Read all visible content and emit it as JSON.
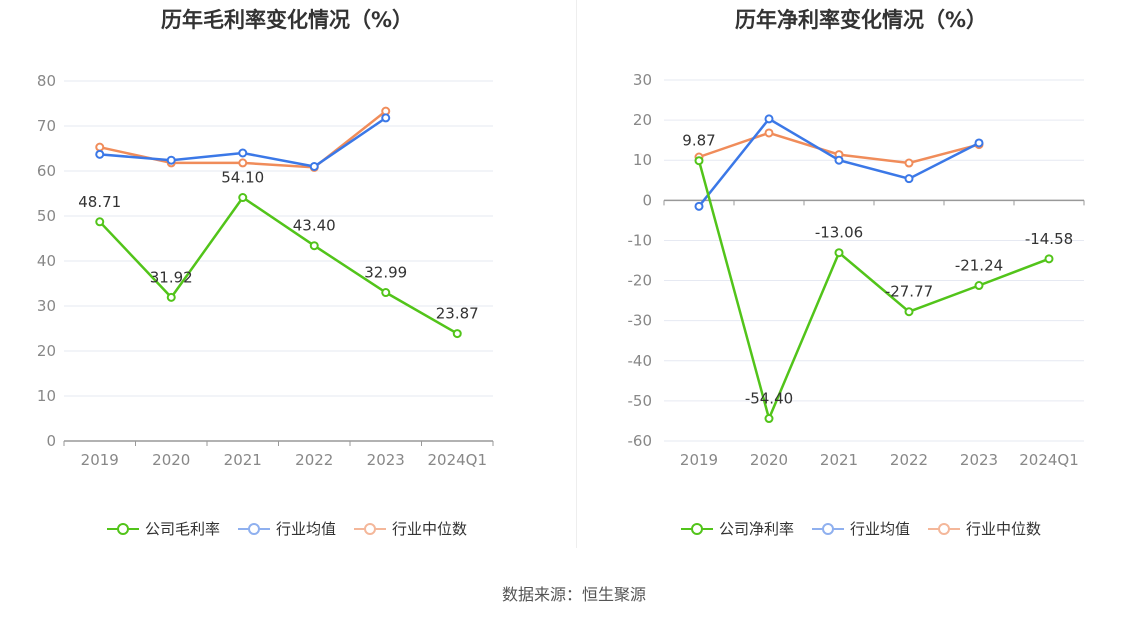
{
  "source": "数据来源：恒生聚源",
  "chart_data": [
    {
      "type": "line",
      "title": "历年毛利率变化情况（%）",
      "categories": [
        "2019",
        "2020",
        "2021",
        "2022",
        "2023",
        "2024Q1"
      ],
      "ylim": [
        0,
        80
      ],
      "yticks": [
        "0",
        "10",
        "20",
        "30",
        "40",
        "50",
        "60",
        "70",
        "80"
      ],
      "grid": true,
      "legend_position": "bottom",
      "series": [
        {
          "name": "公司毛利率",
          "color": "#52c41a",
          "values": [
            48.71,
            31.92,
            54.1,
            43.4,
            32.99,
            23.87
          ],
          "labels": [
            "48.71",
            "31.92",
            "54.10",
            "43.40",
            "32.99",
            "23.87"
          ]
        },
        {
          "name": "行业均值",
          "color": "#3b78e7",
          "values": [
            63.7,
            62.4,
            64.0,
            61.0,
            71.8,
            null
          ]
        },
        {
          "name": "行业中位数",
          "color": "#f08c5a",
          "values": [
            65.3,
            61.8,
            61.8,
            60.8,
            73.3,
            null
          ]
        }
      ]
    },
    {
      "type": "line",
      "title": "历年净利率变化情况（%）",
      "categories": [
        "2019",
        "2020",
        "2021",
        "2022",
        "2023",
        "2024Q1"
      ],
      "ylim": [
        -60,
        30
      ],
      "yticks": [
        "-60",
        "-50",
        "-40",
        "-30",
        "-20",
        "-10",
        "0",
        "10",
        "20",
        "30"
      ],
      "grid": true,
      "legend_position": "bottom",
      "series": [
        {
          "name": "公司净利率",
          "color": "#52c41a",
          "values": [
            9.87,
            -54.4,
            -13.06,
            -27.77,
            -21.24,
            -14.58
          ],
          "labels": [
            "9.87",
            "-54.40",
            "-13.06",
            "-27.77",
            "-21.24",
            "-14.58"
          ]
        },
        {
          "name": "行业均值",
          "color": "#3b78e7",
          "values": [
            -1.5,
            20.3,
            10.0,
            5.4,
            14.3,
            null
          ]
        },
        {
          "name": "行业中位数",
          "color": "#f08c5a",
          "values": [
            10.8,
            16.8,
            11.4,
            9.3,
            13.9,
            null
          ]
        }
      ]
    }
  ]
}
